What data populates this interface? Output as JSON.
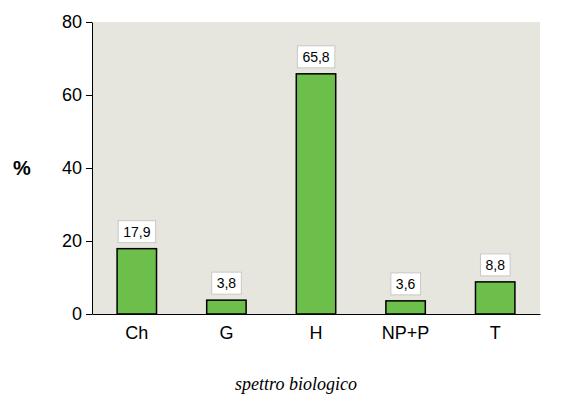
{
  "chart_data": {
    "type": "bar",
    "title": "spettro biologico",
    "y_label": "%",
    "categories": [
      "Ch",
      "G",
      "H",
      "NP+P",
      "T"
    ],
    "values": [
      17.9,
      3.8,
      65.8,
      3.6,
      8.8
    ],
    "value_labels": [
      "17,9",
      "3,8",
      "65,8",
      "3,6",
      "8,8"
    ],
    "color": "#6cbf4a",
    "ylim": [
      0,
      80
    ],
    "yticks": [
      0,
      20,
      40,
      60,
      80
    ],
    "grid": false,
    "data_labels": true
  }
}
